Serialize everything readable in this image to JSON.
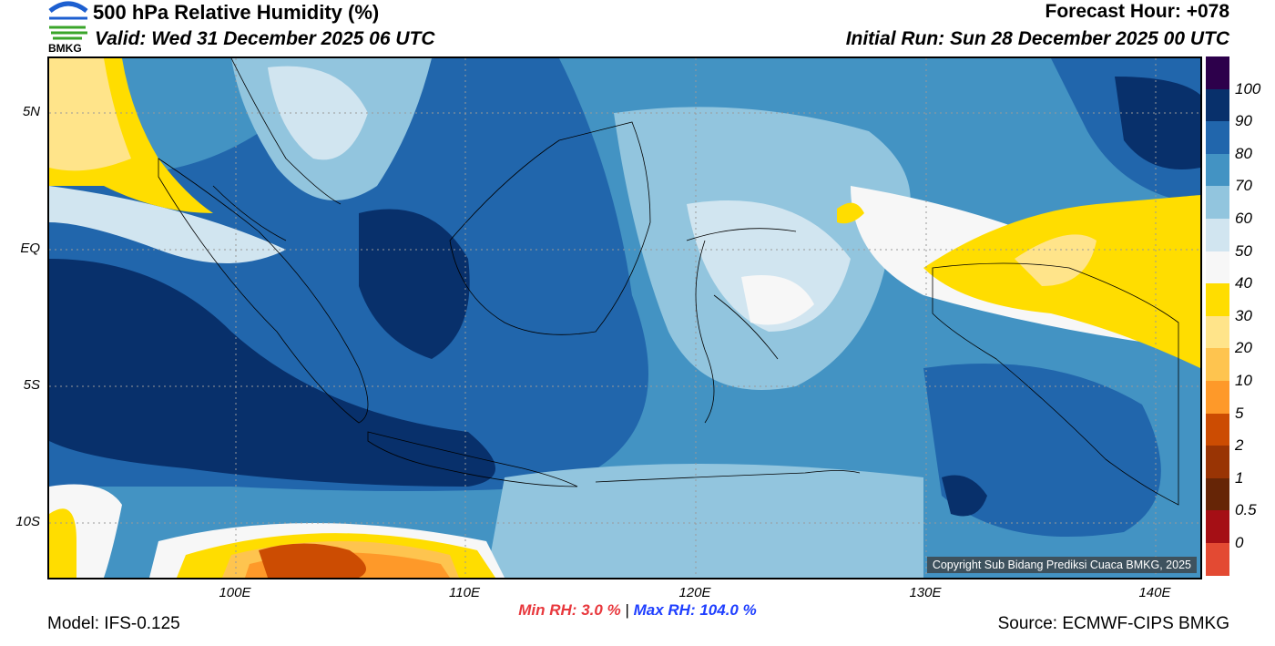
{
  "header": {
    "logo_text": "BMKG",
    "title": "500 hPa Relative Humidity (%)",
    "valid": "Valid: Wed 31 December 2025 06 UTC",
    "forecast_hour": "Forecast Hour: +078",
    "initial_run": "Initial Run: Sun 28 December 2025 00 UTC"
  },
  "axes": {
    "lat_labels": [
      "5N",
      "EQ",
      "5S",
      "10S"
    ],
    "lon_labels": [
      "100E",
      "110E",
      "120E",
      "130E",
      "140E"
    ]
  },
  "colorbar": {
    "labels": [
      "100",
      "90",
      "80",
      "70",
      "60",
      "50",
      "40",
      "30",
      "20",
      "10",
      "5",
      "2",
      "1",
      "0.5",
      "0"
    ],
    "colors": [
      "#2d004b",
      "#08306b",
      "#2166ac",
      "#4393c3",
      "#92c5de",
      "#d1e5f0",
      "#f7f7f7",
      "#ffdd00",
      "#ffe48a",
      "#fec44f",
      "#fe9929",
      "#cc4c02",
      "#993404",
      "#662506",
      "#a50f15",
      "#e34a33"
    ]
  },
  "stats": {
    "min_label": "Min RH:",
    "min_value": "3.0 %",
    "separator": "|",
    "max_label": "Max RH:",
    "max_value": "104.0 %",
    "min_color": "#e8383d",
    "max_color": "#1f3fff"
  },
  "footer": {
    "model": "Model: IFS-0.125",
    "source": "Source: ECMWF-CIPS BMKG"
  },
  "copyright": "Copyright Sub Bidang Prediksi Cuaca BMKG, 2025"
}
